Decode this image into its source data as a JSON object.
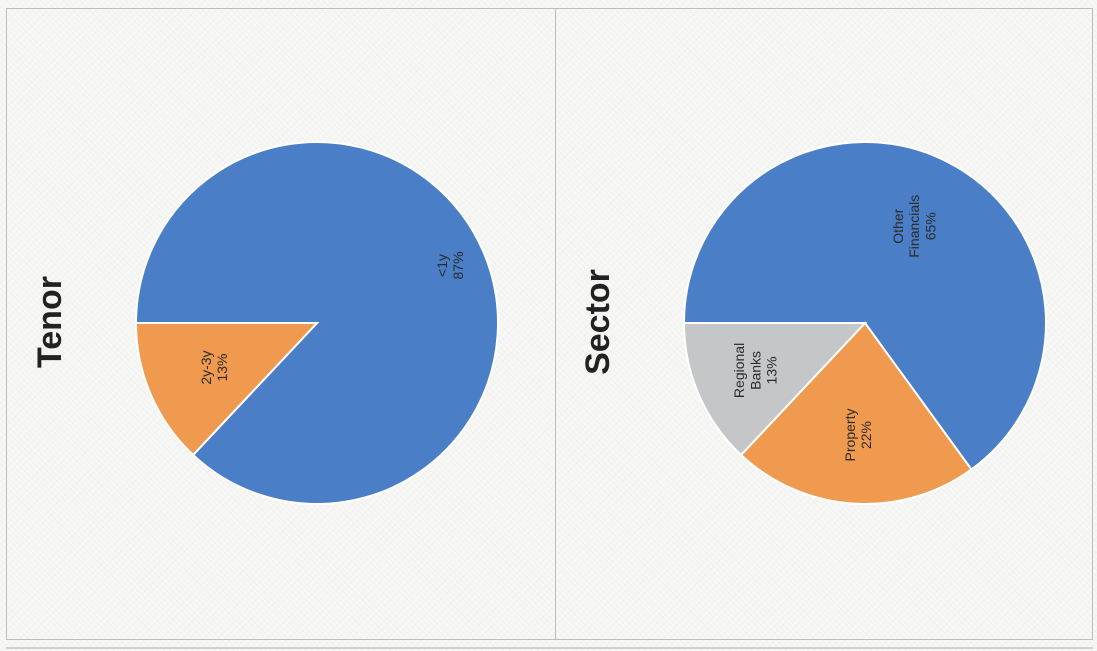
{
  "colors": {
    "blue": "#4a7ec6",
    "orange": "#ef9a4e",
    "gray": "#c4c6c8",
    "slice_border": "#ffffff"
  },
  "chart_data": [
    {
      "type": "pie",
      "title": "Tenor",
      "start_direction": "left",
      "slices": [
        {
          "label_lines": [
            "<1y",
            "87%"
          ],
          "category": "<1y",
          "value": 87,
          "color": "#4a7ec6"
        },
        {
          "label_lines": [
            "2y-3y",
            "13%"
          ],
          "category": "2y-3y",
          "value": 13,
          "color": "#ef9a4e"
        }
      ]
    },
    {
      "type": "pie",
      "title": "Sector",
      "start_direction": "left",
      "slices": [
        {
          "label_lines": [
            "Other",
            "Financials",
            "65%"
          ],
          "category": "Other Financials",
          "value": 65,
          "color": "#4a7ec6"
        },
        {
          "label_lines": [
            "Property",
            "22%"
          ],
          "category": "Property",
          "value": 22,
          "color": "#ef9a4e"
        },
        {
          "label_lines": [
            "Regional",
            "Banks",
            "13%"
          ],
          "category": "Regional Banks",
          "value": 13,
          "color": "#c4c6c8"
        }
      ]
    }
  ]
}
